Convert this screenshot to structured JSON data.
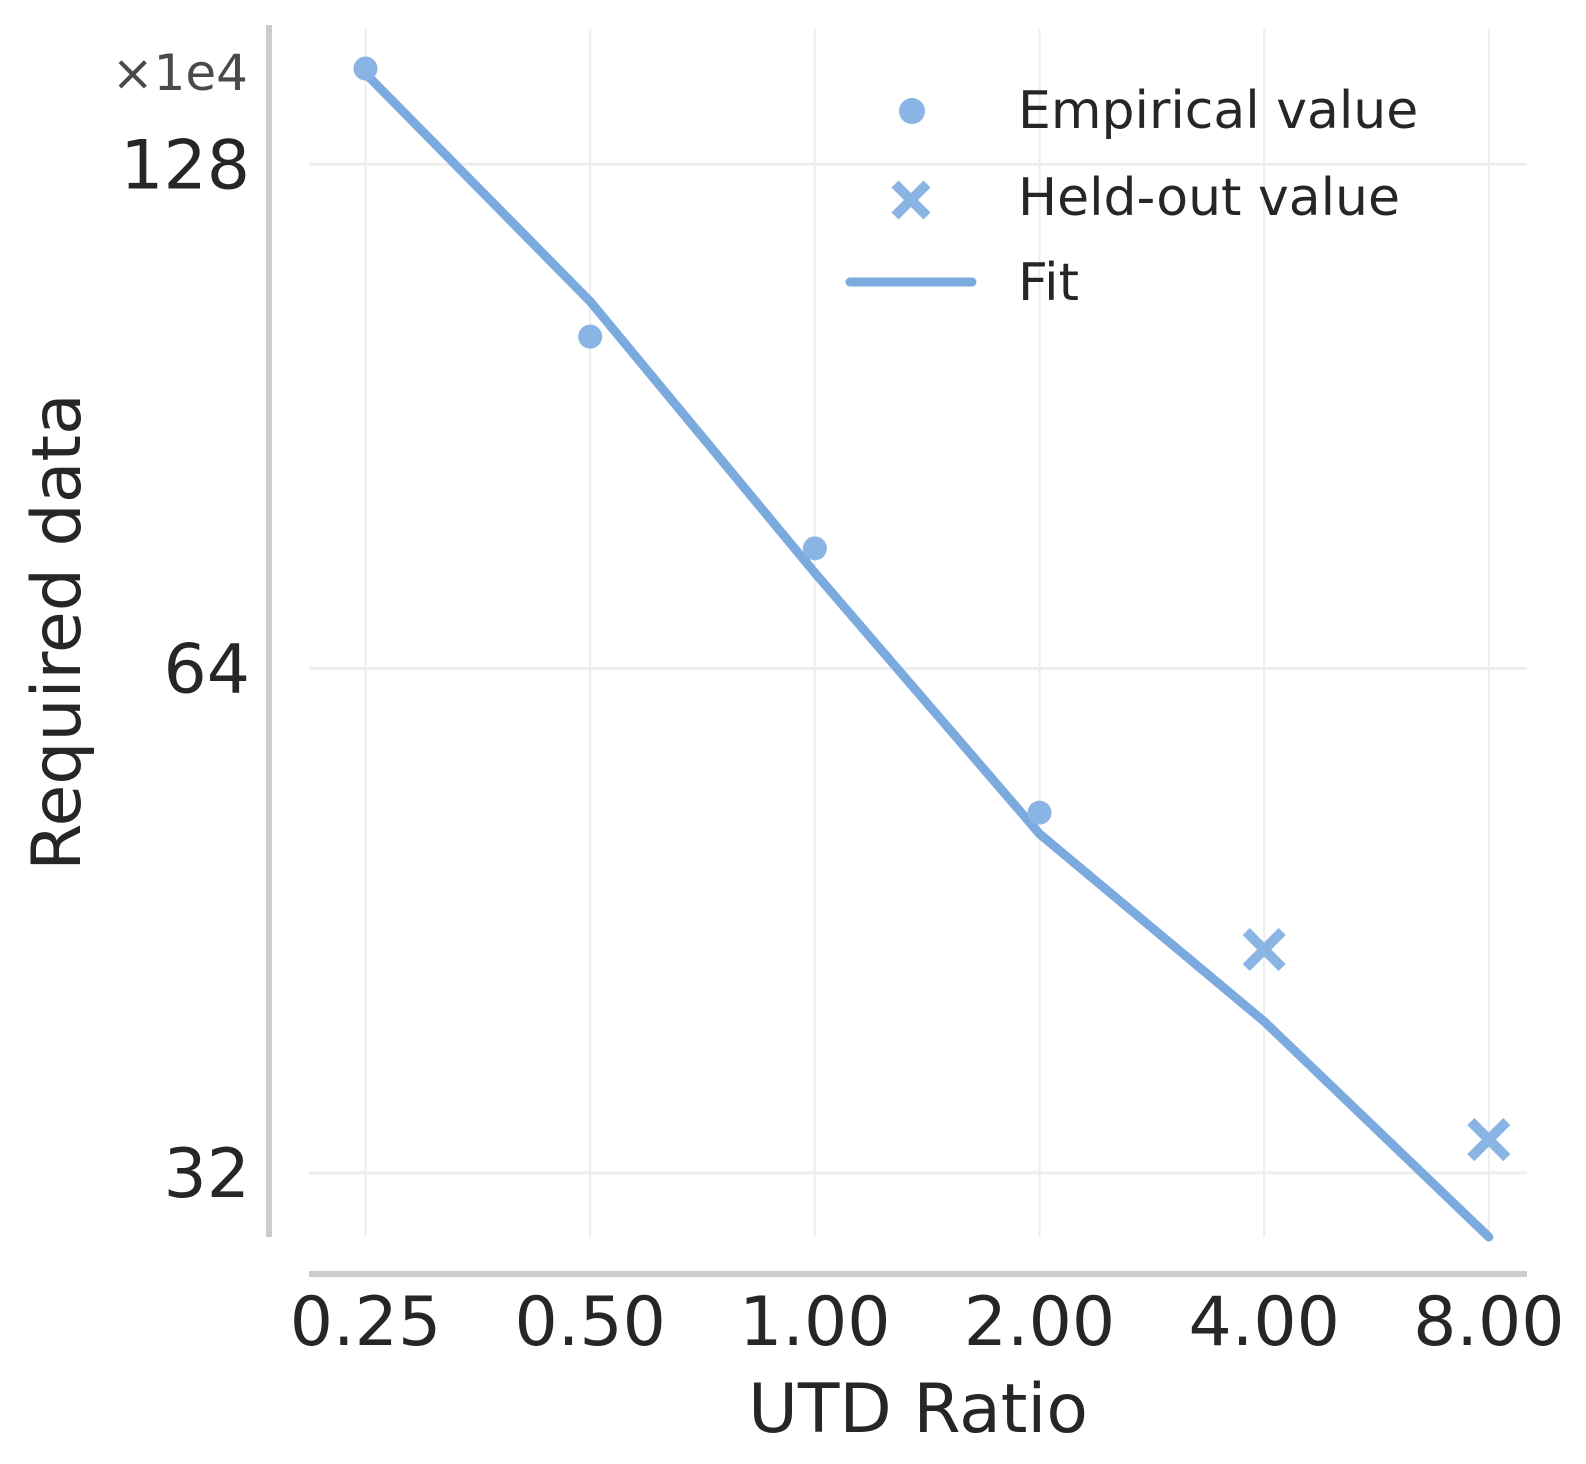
{
  "chart_data": {
    "type": "scatter",
    "xlabel": "UTD Ratio",
    "ylabel": "Required data",
    "x_scale": "log2",
    "y_scale": "log2",
    "y_multiplier_label": "×1e4",
    "x_ticks": [
      0.25,
      0.5,
      1,
      2,
      4,
      8
    ],
    "x_tick_labels": [
      "0.25",
      "0.50",
      "1.00",
      "2.00",
      "4.00",
      "8.00"
    ],
    "y_ticks": [
      32,
      64,
      128
    ],
    "y_tick_labels": [
      "32",
      "64",
      "128"
    ],
    "xlim": [
      0.21,
      9.0
    ],
    "ylim": [
      29.3,
      155
    ],
    "grid": true,
    "legend_position": "top-right",
    "series": [
      {
        "name": "Empirical value",
        "kind": "scatter",
        "marker": "circle",
        "color": "#8ab4e3",
        "x": [
          0.25,
          0.5,
          1,
          2
        ],
        "y": [
          146,
          101,
          75.5,
          52.5
        ]
      },
      {
        "name": "Held-out value",
        "kind": "scatter",
        "marker": "x",
        "color": "#8ab4e3",
        "x": [
          4,
          8
        ],
        "y": [
          43.5,
          33.5
        ]
      },
      {
        "name": "Fit",
        "kind": "line",
        "color": "#7aaade",
        "x": [
          0.25,
          0.5,
          1,
          2,
          4,
          8
        ],
        "y": [
          145,
          106,
          73,
          51,
          39.4,
          29.3
        ]
      }
    ]
  }
}
